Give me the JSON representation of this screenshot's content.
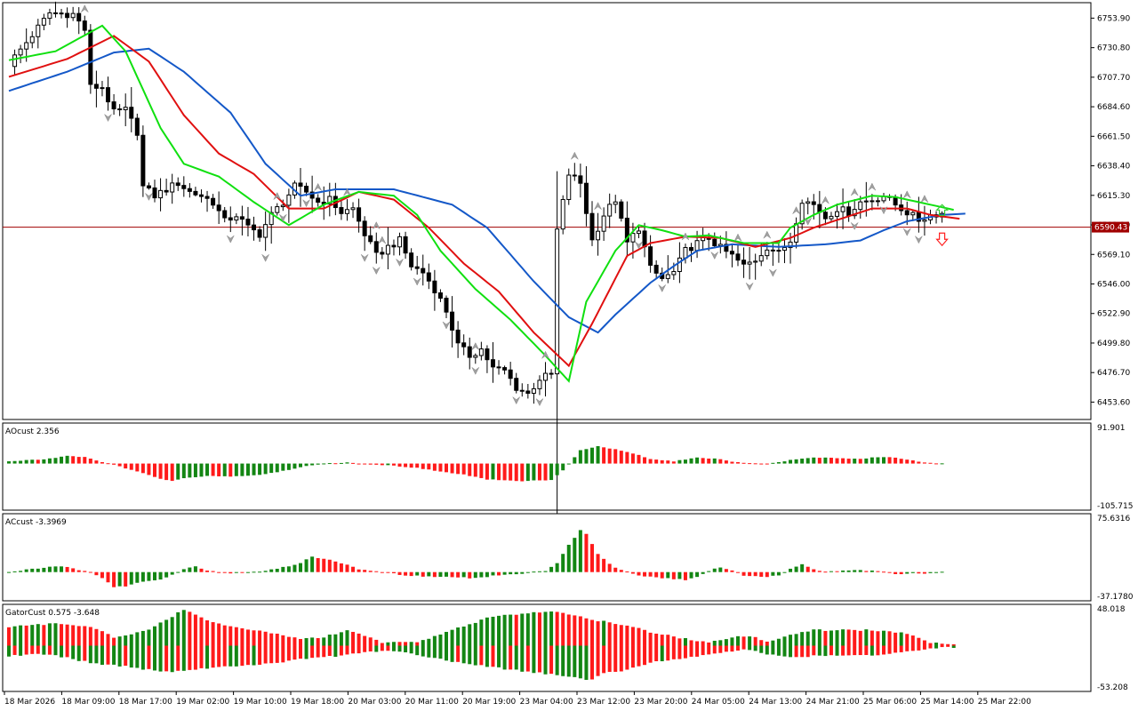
{
  "colors": {
    "background": "#ffffff",
    "frame": "#000000",
    "candle_bull": "#ffffff",
    "candle_bear": "#000000",
    "jaw": "#1458c8",
    "teeth": "#e01010",
    "lips": "#10e010",
    "bid_line": "#a00000",
    "up_bar": "#138613",
    "down_bar": "#ff1a1a",
    "fractal": "#a0a0a0",
    "signal_buy": "#33cc33",
    "signal_sell": "#ff2222"
  },
  "chart_data": [
    {
      "type": "candlestick",
      "pane": "main",
      "y_ticks": [
        "6753.90",
        "6730.80",
        "6707.70",
        "6684.60",
        "6661.50",
        "6638.40",
        "6615.30",
        "6592.20",
        "6569.10",
        "6546.00",
        "6522.90",
        "6499.80",
        "6476.70",
        "6453.60"
      ],
      "ylim": [
        6440.0,
        6766.0
      ],
      "bid_price": "6590.43",
      "bid_value": 6590.43,
      "x_ticks": [
        "18 Mar 2026",
        "18 Mar 09:00",
        "18 Mar 17:00",
        "19 Mar 02:00",
        "19 Mar 10:00",
        "19 Mar 18:00",
        "20 Mar 03:00",
        "20 Mar 11:00",
        "20 Mar 19:00",
        "23 Mar 04:00",
        "23 Mar 12:00",
        "23 Mar 20:00",
        "24 Mar 05:00",
        "24 Mar 13:00",
        "24 Mar 21:00",
        "25 Mar 06:00",
        "25 Mar 14:00",
        "25 Mar 22:00"
      ],
      "close_anchors": [
        [
          0,
          6718
        ],
        [
          3,
          6735
        ],
        [
          7,
          6758
        ],
        [
          11,
          6757
        ],
        [
          13,
          6745
        ],
        [
          14,
          6700
        ],
        [
          16,
          6700
        ],
        [
          18,
          6680
        ],
        [
          20,
          6682
        ],
        [
          22,
          6665
        ],
        [
          23,
          6622
        ],
        [
          25,
          6615
        ],
        [
          27,
          6620
        ],
        [
          29,
          6625
        ],
        [
          31,
          6618
        ],
        [
          33,
          6615
        ],
        [
          35,
          6610
        ],
        [
          37,
          6595
        ],
        [
          39,
          6600
        ],
        [
          41,
          6590
        ],
        [
          43,
          6585
        ],
        [
          45,
          6600
        ],
        [
          47,
          6610
        ],
        [
          49,
          6622
        ],
        [
          51,
          6618
        ],
        [
          53,
          6610
        ],
        [
          55,
          6612
        ],
        [
          57,
          6602
        ],
        [
          59,
          6605
        ],
        [
          61,
          6585
        ],
        [
          63,
          6568
        ],
        [
          65,
          6575
        ],
        [
          67,
          6580
        ],
        [
          69,
          6560
        ],
        [
          71,
          6555
        ],
        [
          73,
          6542
        ],
        [
          75,
          6525
        ],
        [
          77,
          6498
        ],
        [
          79,
          6490
        ],
        [
          81,
          6495
        ],
        [
          83,
          6480
        ],
        [
          85,
          6478
        ],
        [
          87,
          6465
        ],
        [
          89,
          6460
        ],
        [
          91,
          6472
        ],
        [
          93,
          6475
        ],
        [
          94,
          6588
        ],
        [
          96,
          6632
        ],
        [
          98,
          6625
        ],
        [
          100,
          6580
        ],
        [
          102,
          6600
        ],
        [
          104,
          6612
        ],
        [
          106,
          6578
        ],
        [
          108,
          6590
        ],
        [
          110,
          6558
        ],
        [
          112,
          6550
        ],
        [
          114,
          6555
        ],
        [
          116,
          6572
        ],
        [
          118,
          6578
        ],
        [
          120,
          6582
        ],
        [
          122,
          6574
        ],
        [
          124,
          6568
        ],
        [
          126,
          6560
        ],
        [
          128,
          6565
        ],
        [
          130,
          6575
        ],
        [
          132,
          6570
        ],
        [
          134,
          6580
        ],
        [
          136,
          6612
        ],
        [
          138,
          6608
        ],
        [
          140,
          6598
        ],
        [
          142,
          6605
        ],
        [
          144,
          6602
        ],
        [
          146,
          6610
        ],
        [
          148,
          6612
        ],
        [
          150,
          6615
        ],
        [
          152,
          6608
        ],
        [
          154,
          6602
        ],
        [
          156,
          6596
        ],
        [
          158,
          6600
        ],
        [
          159,
          6601
        ]
      ],
      "jaw_anchors": [
        [
          0,
          6697
        ],
        [
          10,
          6712
        ],
        [
          18,
          6727
        ],
        [
          24,
          6730
        ],
        [
          30,
          6712
        ],
        [
          38,
          6680
        ],
        [
          44,
          6640
        ],
        [
          50,
          6615
        ],
        [
          56,
          6620
        ],
        [
          66,
          6620
        ],
        [
          76,
          6608
        ],
        [
          82,
          6590
        ],
        [
          90,
          6548
        ],
        [
          96,
          6520
        ],
        [
          101,
          6508
        ],
        [
          104,
          6522
        ],
        [
          110,
          6547
        ],
        [
          114,
          6560
        ],
        [
          118,
          6572
        ],
        [
          124,
          6577
        ],
        [
          132,
          6575
        ],
        [
          140,
          6577
        ],
        [
          146,
          6580
        ],
        [
          150,
          6588
        ],
        [
          154,
          6595
        ],
        [
          160,
          6600
        ],
        [
          164,
          6601
        ]
      ],
      "teeth_anchors": [
        [
          0,
          6708
        ],
        [
          10,
          6722
        ],
        [
          18,
          6740
        ],
        [
          24,
          6720
        ],
        [
          30,
          6678
        ],
        [
          36,
          6648
        ],
        [
          42,
          6632
        ],
        [
          48,
          6605
        ],
        [
          54,
          6605
        ],
        [
          60,
          6618
        ],
        [
          66,
          6612
        ],
        [
          72,
          6590
        ],
        [
          78,
          6562
        ],
        [
          84,
          6540
        ],
        [
          90,
          6508
        ],
        [
          96,
          6482
        ],
        [
          100,
          6515
        ],
        [
          106,
          6568
        ],
        [
          110,
          6578
        ],
        [
          116,
          6583
        ],
        [
          122,
          6582
        ],
        [
          128,
          6575
        ],
        [
          134,
          6582
        ],
        [
          138,
          6590
        ],
        [
          142,
          6596
        ],
        [
          148,
          6605
        ],
        [
          154,
          6605
        ],
        [
          158,
          6600
        ],
        [
          163,
          6597
        ]
      ],
      "lips_anchors": [
        [
          0,
          6721
        ],
        [
          8,
          6728
        ],
        [
          16,
          6748
        ],
        [
          20,
          6728
        ],
        [
          26,
          6668
        ],
        [
          30,
          6640
        ],
        [
          36,
          6630
        ],
        [
          42,
          6610
        ],
        [
          48,
          6592
        ],
        [
          54,
          6608
        ],
        [
          60,
          6618
        ],
        [
          66,
          6615
        ],
        [
          70,
          6600
        ],
        [
          74,
          6572
        ],
        [
          80,
          6542
        ],
        [
          86,
          6518
        ],
        [
          92,
          6490
        ],
        [
          96,
          6470
        ],
        [
          99,
          6532
        ],
        [
          104,
          6572
        ],
        [
          108,
          6592
        ],
        [
          112,
          6588
        ],
        [
          116,
          6583
        ],
        [
          120,
          6584
        ],
        [
          126,
          6578
        ],
        [
          132,
          6578
        ],
        [
          134,
          6590
        ],
        [
          138,
          6600
        ],
        [
          142,
          6608
        ],
        [
          148,
          6615
        ],
        [
          152,
          6614
        ],
        [
          158,
          6608
        ],
        [
          162,
          6604
        ]
      ],
      "fractal_up_idx": [
        8,
        13,
        46,
        53,
        58,
        63,
        64,
        80,
        92,
        97,
        101,
        116,
        125,
        130,
        135,
        140,
        145,
        148,
        154,
        157
      ],
      "fractal_down_idx": [
        17,
        24,
        38,
        44,
        47,
        51,
        61,
        63,
        67,
        70,
        75,
        80,
        87,
        91,
        108,
        112,
        121,
        127,
        131,
        137,
        145,
        150,
        154,
        156
      ],
      "buy_signal_idx": 160,
      "sell_signal_idx": 160
    },
    {
      "type": "bar",
      "pane": "ao",
      "label": "AOcust 2.356",
      "y_ticks": [
        "91.901",
        "-105.715"
      ],
      "ylim": [
        -105.715,
        91.901
      ],
      "anchors": [
        [
          0,
          5
        ],
        [
          6,
          10
        ],
        [
          10,
          17
        ],
        [
          13,
          15
        ],
        [
          16,
          3
        ],
        [
          18,
          -3
        ],
        [
          22,
          -18
        ],
        [
          26,
          -35
        ],
        [
          28,
          -40
        ],
        [
          30,
          -33
        ],
        [
          34,
          -28
        ],
        [
          38,
          -30
        ],
        [
          42,
          -27
        ],
        [
          46,
          -20
        ],
        [
          50,
          -8
        ],
        [
          54,
          0
        ],
        [
          58,
          2
        ],
        [
          62,
          -2
        ],
        [
          66,
          -5
        ],
        [
          70,
          -10
        ],
        [
          74,
          -18
        ],
        [
          78,
          -25
        ],
        [
          82,
          -36
        ],
        [
          88,
          -40
        ],
        [
          93,
          -37
        ],
        [
          95,
          -15
        ],
        [
          98,
          30
        ],
        [
          101,
          40
        ],
        [
          104,
          32
        ],
        [
          108,
          20
        ],
        [
          110,
          10
        ],
        [
          114,
          5
        ],
        [
          118,
          14
        ],
        [
          122,
          10
        ],
        [
          124,
          4
        ],
        [
          130,
          -1
        ],
        [
          134,
          8
        ],
        [
          138,
          14
        ],
        [
          146,
          10
        ],
        [
          148,
          14
        ],
        [
          152,
          14
        ],
        [
          156,
          4
        ],
        [
          160,
          0
        ]
      ],
      "colors_flip_idx": [
        0,
        14,
        22,
        26,
        34,
        42,
        50,
        58,
        66,
        74,
        82,
        90,
        96,
        101,
        104,
        112,
        118,
        122,
        126,
        134,
        138,
        146
      ]
    },
    {
      "type": "bar",
      "pane": "ac",
      "label": "ACcust -3.3969",
      "y_ticks": [
        "75.6316",
        "-37.1780"
      ],
      "ylim": [
        -37.178,
        75.6316
      ],
      "anchors": [
        [
          0,
          0
        ],
        [
          4,
          4
        ],
        [
          8,
          8
        ],
        [
          10,
          6
        ],
        [
          14,
          0
        ],
        [
          16,
          -8
        ],
        [
          18,
          -20
        ],
        [
          20,
          -18
        ],
        [
          22,
          -14
        ],
        [
          26,
          -10
        ],
        [
          28,
          -4
        ],
        [
          30,
          4
        ],
        [
          32,
          8
        ],
        [
          34,
          2
        ],
        [
          38,
          -2
        ],
        [
          42,
          0
        ],
        [
          46,
          4
        ],
        [
          50,
          12
        ],
        [
          52,
          20
        ],
        [
          56,
          14
        ],
        [
          60,
          4
        ],
        [
          64,
          0
        ],
        [
          68,
          -4
        ],
        [
          72,
          -6
        ],
        [
          76,
          -6
        ],
        [
          80,
          -8
        ],
        [
          84,
          -4
        ],
        [
          88,
          -2
        ],
        [
          92,
          2
        ],
        [
          94,
          12
        ],
        [
          96,
          36
        ],
        [
          98,
          54
        ],
        [
          99,
          50
        ],
        [
          101,
          24
        ],
        [
          104,
          5
        ],
        [
          108,
          -4
        ],
        [
          112,
          -8
        ],
        [
          116,
          -10
        ],
        [
          118,
          -6
        ],
        [
          120,
          2
        ],
        [
          122,
          6
        ],
        [
          124,
          2
        ],
        [
          126,
          -4
        ],
        [
          130,
          -6
        ],
        [
          132,
          -4
        ],
        [
          134,
          4
        ],
        [
          136,
          10
        ],
        [
          138,
          4
        ],
        [
          140,
          0
        ],
        [
          144,
          2
        ],
        [
          148,
          2
        ],
        [
          152,
          -2
        ],
        [
          156,
          -2
        ],
        [
          160,
          0
        ]
      ]
    },
    {
      "type": "bar",
      "pane": "gator",
      "label": "GatorCust 0.575 -3.648",
      "y_ticks": [
        "48.018",
        "-53.208"
      ],
      "ylim": [
        -53.208,
        48.018
      ],
      "upper_anchors": [
        [
          0,
          22
        ],
        [
          8,
          26
        ],
        [
          14,
          22
        ],
        [
          18,
          10
        ],
        [
          24,
          18
        ],
        [
          30,
          42
        ],
        [
          34,
          30
        ],
        [
          38,
          22
        ],
        [
          46,
          14
        ],
        [
          50,
          8
        ],
        [
          54,
          10
        ],
        [
          58,
          18
        ],
        [
          64,
          4
        ],
        [
          70,
          4
        ],
        [
          72,
          8
        ],
        [
          76,
          18
        ],
        [
          82,
          32
        ],
        [
          86,
          36
        ],
        [
          94,
          40
        ],
        [
          100,
          30
        ],
        [
          106,
          24
        ],
        [
          110,
          16
        ],
        [
          116,
          8
        ],
        [
          120,
          4
        ],
        [
          124,
          10
        ],
        [
          128,
          10
        ],
        [
          130,
          4
        ],
        [
          134,
          12
        ],
        [
          138,
          18
        ],
        [
          142,
          18
        ],
        [
          148,
          18
        ],
        [
          154,
          14
        ],
        [
          158,
          4
        ],
        [
          162,
          2
        ]
      ],
      "lower_anchors": [
        [
          0,
          -12
        ],
        [
          6,
          -10
        ],
        [
          10,
          -14
        ],
        [
          14,
          -20
        ],
        [
          20,
          -24
        ],
        [
          26,
          -30
        ],
        [
          30,
          -30
        ],
        [
          34,
          -26
        ],
        [
          38,
          -24
        ],
        [
          46,
          -20
        ],
        [
          50,
          -16
        ],
        [
          56,
          -12
        ],
        [
          60,
          -8
        ],
        [
          66,
          -6
        ],
        [
          72,
          -14
        ],
        [
          76,
          -18
        ],
        [
          82,
          -24
        ],
        [
          86,
          -28
        ],
        [
          94,
          -34
        ],
        [
          98,
          -38
        ],
        [
          100,
          -40
        ],
        [
          102,
          -32
        ],
        [
          106,
          -28
        ],
        [
          110,
          -20
        ],
        [
          114,
          -16
        ],
        [
          120,
          -10
        ],
        [
          126,
          -4
        ],
        [
          130,
          -10
        ],
        [
          134,
          -14
        ],
        [
          138,
          -12
        ],
        [
          144,
          -12
        ],
        [
          150,
          -10
        ],
        [
          156,
          -6
        ],
        [
          160,
          -2
        ]
      ]
    }
  ]
}
